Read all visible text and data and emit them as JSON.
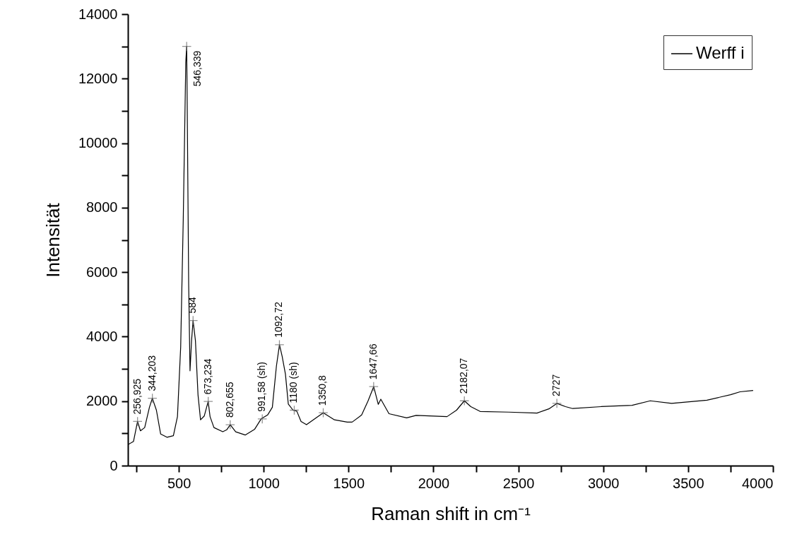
{
  "chart_data": {
    "type": "line",
    "xlabel": "Raman shift in cm⁻¹",
    "ylabel": "Intensität",
    "xlim": [
      200,
      4000
    ],
    "xticks": [
      {
        "value": 250,
        "label": null
      },
      500,
      {
        "value": 750,
        "label": null
      },
      1000,
      {
        "value": 1250,
        "label": null
      },
      1500,
      {
        "value": 1750,
        "label": null
      },
      2000,
      {
        "value": 2250,
        "label": null
      },
      2500,
      {
        "value": 2750,
        "label": null
      },
      3000,
      {
        "value": 3250,
        "label": null
      },
      3500,
      {
        "value": 3750,
        "label": null
      },
      4000
    ],
    "ylim": [
      0,
      14000
    ],
    "yticks": [
      0,
      {
        "value": 1000,
        "label": null
      },
      2000,
      {
        "value": 3000,
        "label": null
      },
      4000,
      {
        "value": 5000,
        "label": null
      },
      6000,
      {
        "value": 7000,
        "label": null
      },
      8000,
      {
        "value": 9000,
        "label": null
      },
      10000,
      {
        "value": 11000,
        "label": null
      },
      12000,
      {
        "value": 13000,
        "label": null
      },
      14000
    ],
    "legend": "top right",
    "grid": false,
    "series": [
      {
        "name": "Werff i",
        "color": "#000000",
        "x": [
          200,
          233,
          256.9,
          274,
          299,
          327,
          344,
          368,
          393,
          430,
          468,
          492,
          511,
          526,
          541,
          546.3,
          549,
          558,
          566,
          575,
          584,
          598,
          613,
          628,
          650,
          673,
          684,
          707,
          759,
          782,
          803,
          835,
          891,
          947,
          985,
          1023,
          1051,
          1075,
          1093,
          1109,
          1128,
          1145,
          1173,
          1195,
          1220,
          1252,
          1305,
          1351,
          1417,
          1492,
          1521,
          1577,
          1615,
          1648,
          1675,
          1690,
          1738,
          1842,
          1898,
          2080,
          2136,
          2182,
          2220,
          2275,
          2443,
          2610,
          2680,
          2727,
          2778,
          2820,
          2988,
          3170,
          3277,
          3403,
          3611,
          3750,
          3806,
          3883
        ],
        "values": [
          650,
          750,
          1370,
          1080,
          1180,
          1810,
          2090,
          1720,
          980,
          880,
          930,
          1520,
          3680,
          7600,
          12500,
          13000,
          11520,
          5640,
          2940,
          3870,
          4500,
          3870,
          2200,
          1420,
          1540,
          1990,
          1520,
          1180,
          1050,
          1110,
          1270,
          1050,
          950,
          1130,
          1450,
          1570,
          1810,
          3090,
          3750,
          3380,
          2840,
          1910,
          1720,
          1690,
          1370,
          1270,
          1470,
          1640,
          1420,
          1350,
          1350,
          1570,
          2010,
          2450,
          1900,
          2060,
          1610,
          1480,
          1560,
          1520,
          1720,
          2010,
          1830,
          1680,
          1660,
          1630,
          1760,
          1930,
          1830,
          1770,
          1830,
          1870,
          2010,
          1930,
          2030,
          2200,
          2290,
          2330
        ]
      }
    ],
    "annotations": [
      {
        "text": "256,925",
        "x": 256.925,
        "y": 1370
      },
      {
        "text": "344,203",
        "x": 344.203,
        "y": 2090
      },
      {
        "text": "546,339",
        "x": 546.339,
        "y": 13000
      },
      {
        "text": "584",
        "x": 584,
        "y": 4500
      },
      {
        "text": "673,234",
        "x": 673.234,
        "y": 1990
      },
      {
        "text": "802,655",
        "x": 802.655,
        "y": 1270
      },
      {
        "text": "991,58 (sh)",
        "x": 991.58,
        "y": 1450
      },
      {
        "text": "1092,72",
        "x": 1092.72,
        "y": 3750
      },
      {
        "text": "1180 (sh)",
        "x": 1180,
        "y": 1720
      },
      {
        "text": "1350,8",
        "x": 1350.8,
        "y": 1640
      },
      {
        "text": "1647,66",
        "x": 1647.66,
        "y": 2450
      },
      {
        "text": "2182,07",
        "x": 2182.07,
        "y": 2010
      },
      {
        "text": "2727",
        "x": 2727,
        "y": 1930
      }
    ]
  }
}
